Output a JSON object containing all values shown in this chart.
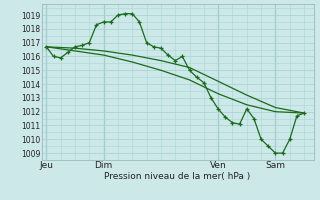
{
  "bg_color": "#cce8e8",
  "grid_color": "#aad4d4",
  "line_color": "#1a6b1a",
  "ylabel": "Pression niveau de la mer( hPa )",
  "ylim": [
    1008.5,
    1019.8
  ],
  "yticks": [
    1009,
    1010,
    1011,
    1012,
    1013,
    1014,
    1015,
    1016,
    1017,
    1018,
    1019
  ],
  "xtick_labels": [
    "Jeu",
    "Dim",
    "Ven",
    "Sam"
  ],
  "xtick_positions": [
    0,
    24,
    72,
    96
  ],
  "total_xlim": [
    -2,
    112
  ],
  "series1_x": [
    0,
    3,
    6,
    9,
    12,
    15,
    18,
    21,
    24,
    27,
    30,
    33,
    36,
    39,
    42,
    45,
    48,
    51,
    54,
    57,
    60,
    63,
    66,
    69,
    72,
    75,
    78,
    81,
    84,
    87,
    90,
    93,
    96,
    99,
    102,
    105,
    108
  ],
  "series1_y": [
    1016.7,
    1016.0,
    1015.9,
    1016.3,
    1016.7,
    1016.8,
    1017.0,
    1018.3,
    1018.5,
    1018.5,
    1019.0,
    1019.1,
    1019.1,
    1018.5,
    1017.0,
    1016.7,
    1016.6,
    1016.1,
    1015.7,
    1016.0,
    1015.0,
    1014.5,
    1014.1,
    1013.0,
    1012.2,
    1011.6,
    1011.2,
    1011.1,
    1012.2,
    1011.5,
    1010.0,
    1009.5,
    1009.0,
    1009.0,
    1010.0,
    1011.7,
    1011.9
  ],
  "series2_x": [
    0,
    12,
    24,
    36,
    48,
    60,
    72,
    84,
    96,
    108
  ],
  "series2_y": [
    1016.7,
    1016.6,
    1016.4,
    1016.1,
    1015.7,
    1015.2,
    1014.2,
    1013.2,
    1012.3,
    1011.9
  ],
  "series3_x": [
    0,
    12,
    24,
    36,
    48,
    60,
    72,
    84,
    96,
    108
  ],
  "series3_y": [
    1016.7,
    1016.4,
    1016.1,
    1015.6,
    1015.0,
    1014.3,
    1013.3,
    1012.5,
    1012.0,
    1011.9
  ],
  "vline_positions": [
    0,
    24,
    72,
    96
  ]
}
